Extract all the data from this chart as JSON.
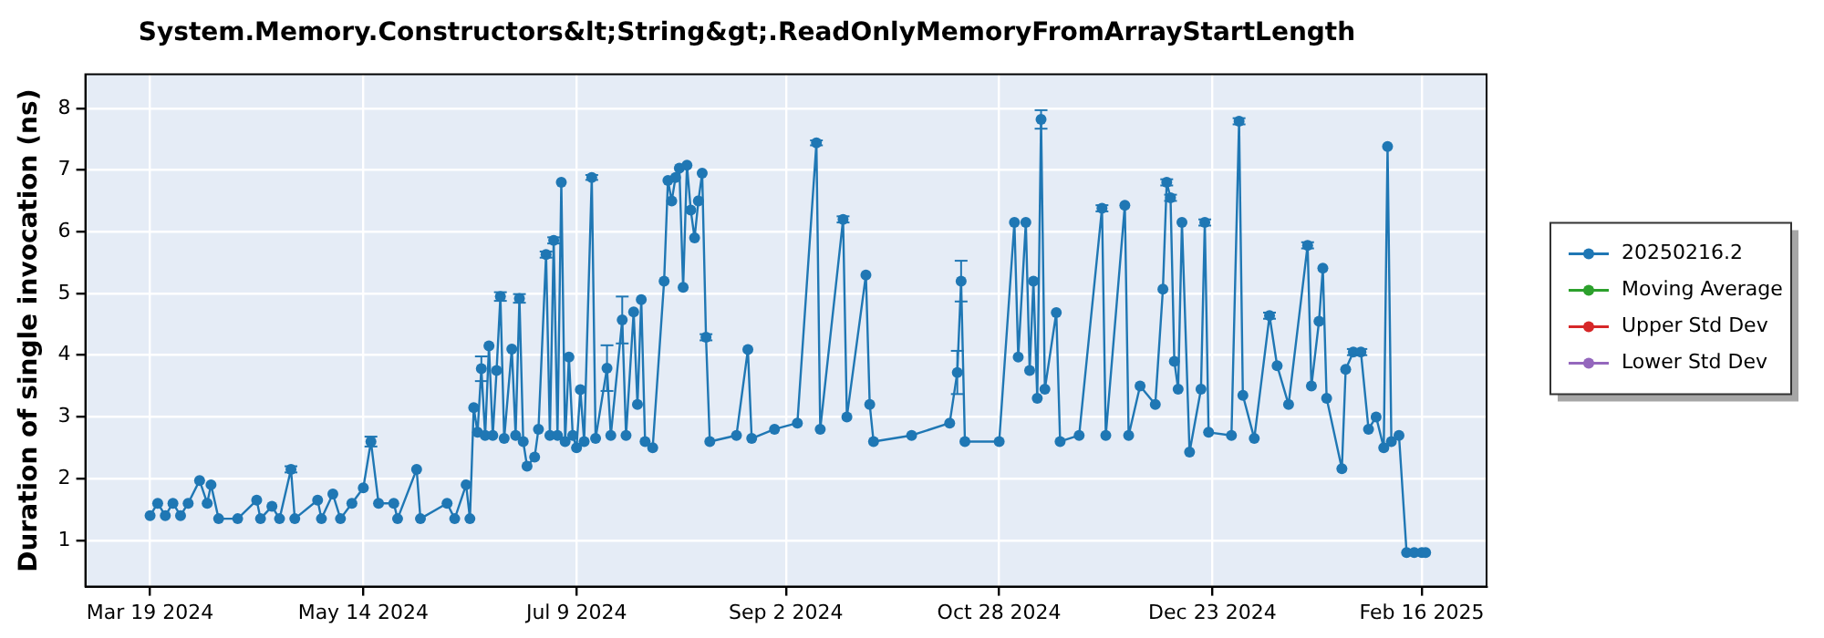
{
  "chart_data": {
    "type": "line",
    "title": "System.Memory.Constructors&lt;String&gt;.ReadOnlyMemoryFromArrayStartLength",
    "ylabel": "Duration of single invocation (ns)",
    "xlim": [
      "2024-03-02",
      "2025-03-05"
    ],
    "xticks": [
      {
        "value": "2024-03-19",
        "label": "Mar 19 2024"
      },
      {
        "value": "2024-05-14",
        "label": "May 14 2024"
      },
      {
        "value": "2024-07-09",
        "label": "Jul 9 2024"
      },
      {
        "value": "2024-09-02",
        "label": "Sep 2 2024"
      },
      {
        "value": "2024-10-28",
        "label": "Oct 28 2024"
      },
      {
        "value": "2024-12-23",
        "label": "Dec 23 2024"
      },
      {
        "value": "2025-02-16",
        "label": "Feb 16 2025"
      }
    ],
    "ylim": [
      0.25,
      8.55
    ],
    "yticks": [
      1,
      2,
      3,
      4,
      5,
      6,
      7,
      8
    ],
    "grid": true,
    "legend": "right",
    "marker": "circle",
    "line_style": "solid",
    "series": [
      {
        "name": "20250216.2",
        "color": "#1f77b4",
        "x": [
          "2024-03-19",
          "2024-03-21",
          "2024-03-23",
          "2024-03-25",
          "2024-03-27",
          "2024-03-29",
          "2024-04-01",
          "2024-04-03",
          "2024-04-04",
          "2024-04-06",
          "2024-04-11",
          "2024-04-16",
          "2024-04-17",
          "2024-04-20",
          "2024-04-22",
          "2024-04-25",
          "2024-04-26",
          "2024-05-02",
          "2024-05-03",
          "2024-05-06",
          "2024-05-08",
          "2024-05-11",
          "2024-05-14",
          "2024-05-16",
          "2024-05-18",
          "2024-05-22",
          "2024-05-23",
          "2024-05-28",
          "2024-05-29",
          "2024-06-05",
          "2024-06-07",
          "2024-06-10",
          "2024-06-11",
          "2024-06-12",
          "2024-06-13",
          "2024-06-14",
          "2024-06-15",
          "2024-06-16",
          "2024-06-17",
          "2024-06-18",
          "2024-06-19",
          "2024-06-20",
          "2024-06-22",
          "2024-06-23",
          "2024-06-24",
          "2024-06-25",
          "2024-06-26",
          "2024-06-28",
          "2024-06-29",
          "2024-07-01",
          "2024-07-02",
          "2024-07-03",
          "2024-07-04",
          "2024-07-05",
          "2024-07-06",
          "2024-07-07",
          "2024-07-08",
          "2024-07-09",
          "2024-07-10",
          "2024-07-11",
          "2024-07-13",
          "2024-07-14",
          "2024-07-17",
          "2024-07-18",
          "2024-07-21",
          "2024-07-22",
          "2024-07-24",
          "2024-07-25",
          "2024-07-26",
          "2024-07-27",
          "2024-07-29",
          "2024-08-01",
          "2024-08-02",
          "2024-08-03",
          "2024-08-04",
          "2024-08-05",
          "2024-08-06",
          "2024-08-07",
          "2024-08-08",
          "2024-08-09",
          "2024-08-10",
          "2024-08-11",
          "2024-08-12",
          "2024-08-13",
          "2024-08-20",
          "2024-08-23",
          "2024-08-24",
          "2024-08-30",
          "2024-09-05",
          "2024-09-10",
          "2024-09-11",
          "2024-09-17",
          "2024-09-18",
          "2024-09-23",
          "2024-09-24",
          "2024-09-25",
          "2024-10-05",
          "2024-10-15",
          "2024-10-17",
          "2024-10-18",
          "2024-10-19",
          "2024-10-28",
          "2024-11-01",
          "2024-11-02",
          "2024-11-04",
          "2024-11-05",
          "2024-11-06",
          "2024-11-07",
          "2024-11-08",
          "2024-11-09",
          "2024-11-12",
          "2024-11-13",
          "2024-11-18",
          "2024-11-24",
          "2024-11-25",
          "2024-11-30",
          "2024-12-01",
          "2024-12-04",
          "2024-12-08",
          "2024-12-10",
          "2024-12-11",
          "2024-12-12",
          "2024-12-13",
          "2024-12-14",
          "2024-12-15",
          "2024-12-17",
          "2024-12-20",
          "2024-12-21",
          "2024-12-22",
          "2024-12-28",
          "2024-12-30",
          "2024-12-31",
          "2025-01-03",
          "2025-01-07",
          "2025-01-09",
          "2025-01-12",
          "2025-01-17",
          "2025-01-18",
          "2025-01-20",
          "2025-01-21",
          "2025-01-22",
          "2025-01-26",
          "2025-01-27",
          "2025-01-29",
          "2025-01-31",
          "2025-02-02",
          "2025-02-04",
          "2025-02-06",
          "2025-02-07",
          "2025-02-08",
          "2025-02-10",
          "2025-02-12",
          "2025-02-14",
          "2025-02-16",
          "2025-02-17"
        ],
        "values": [
          1.4,
          1.6,
          1.4,
          1.6,
          1.4,
          1.6,
          1.97,
          1.6,
          1.9,
          1.35,
          1.35,
          1.65,
          1.35,
          1.55,
          1.35,
          2.15,
          1.35,
          1.65,
          1.35,
          1.75,
          1.35,
          1.6,
          1.85,
          2.6,
          1.6,
          1.6,
          1.35,
          2.15,
          1.35,
          1.6,
          1.35,
          1.9,
          1.35,
          3.15,
          2.75,
          3.78,
          2.7,
          4.15,
          2.7,
          3.75,
          4.95,
          2.65,
          4.1,
          2.7,
          4.92,
          2.6,
          2.2,
          2.35,
          2.8,
          5.63,
          2.7,
          5.86,
          2.7,
          6.8,
          2.6,
          3.97,
          2.7,
          2.5,
          3.44,
          2.6,
          6.88,
          2.65,
          3.79,
          2.7,
          4.57,
          2.7,
          4.7,
          3.2,
          4.9,
          2.6,
          2.5,
          5.2,
          6.83,
          6.5,
          6.88,
          7.03,
          5.1,
          7.08,
          6.35,
          5.9,
          6.5,
          6.95,
          4.29,
          2.6,
          2.7,
          4.09,
          2.65,
          2.8,
          2.9,
          7.44,
          2.8,
          6.2,
          3.0,
          5.3,
          3.2,
          2.6,
          2.7,
          2.9,
          3.72,
          5.2,
          2.6,
          2.6,
          6.15,
          3.97,
          6.15,
          3.75,
          5.2,
          3.3,
          7.82,
          3.45,
          4.69,
          2.6,
          2.7,
          6.38,
          2.7,
          6.43,
          2.7,
          3.5,
          3.2,
          5.07,
          6.8,
          6.55,
          3.9,
          3.45,
          6.15,
          2.43,
          3.45,
          6.15,
          2.75,
          2.7,
          7.79,
          3.35,
          2.65,
          4.64,
          3.83,
          3.2,
          5.78,
          3.5,
          4.55,
          5.41,
          3.3,
          2.16,
          3.77,
          4.05,
          4.05,
          2.8,
          3.0,
          2.5,
          7.38,
          2.6,
          2.7,
          0.8,
          0.8,
          0.8,
          0.8
        ],
        "errors": [
          null,
          null,
          null,
          null,
          null,
          null,
          null,
          null,
          null,
          null,
          null,
          null,
          null,
          null,
          null,
          0.05,
          null,
          null,
          null,
          null,
          null,
          null,
          null,
          0.08,
          null,
          null,
          null,
          null,
          null,
          null,
          null,
          null,
          null,
          null,
          null,
          0.2,
          null,
          null,
          null,
          null,
          0.07,
          null,
          null,
          null,
          0.07,
          null,
          null,
          null,
          null,
          0.05,
          null,
          0.05,
          null,
          null,
          null,
          null,
          null,
          null,
          null,
          null,
          0.04,
          null,
          0.37,
          null,
          0.38,
          null,
          null,
          null,
          null,
          null,
          null,
          null,
          null,
          null,
          null,
          null,
          null,
          null,
          null,
          null,
          null,
          null,
          0.05,
          null,
          null,
          null,
          null,
          null,
          null,
          0.04,
          null,
          0.05,
          null,
          null,
          null,
          null,
          null,
          null,
          0.35,
          0.33,
          null,
          null,
          null,
          null,
          null,
          null,
          null,
          null,
          0.15,
          null,
          null,
          null,
          null,
          0.05,
          null,
          null,
          null,
          null,
          null,
          null,
          0.05,
          0.05,
          null,
          null,
          null,
          null,
          null,
          0.05,
          null,
          null,
          0.05,
          null,
          null,
          0.05,
          null,
          null,
          0.05,
          null,
          null,
          null,
          null,
          null,
          null,
          0.05,
          0.05,
          null,
          null,
          null,
          null,
          null,
          null,
          null,
          null,
          null,
          null
        ]
      },
      {
        "name": "Moving Average",
        "color": "#2ca02c"
      },
      {
        "name": "Upper Std Dev",
        "color": "#d62728"
      },
      {
        "name": "Lower Std Dev",
        "color": "#9467bd"
      }
    ]
  }
}
